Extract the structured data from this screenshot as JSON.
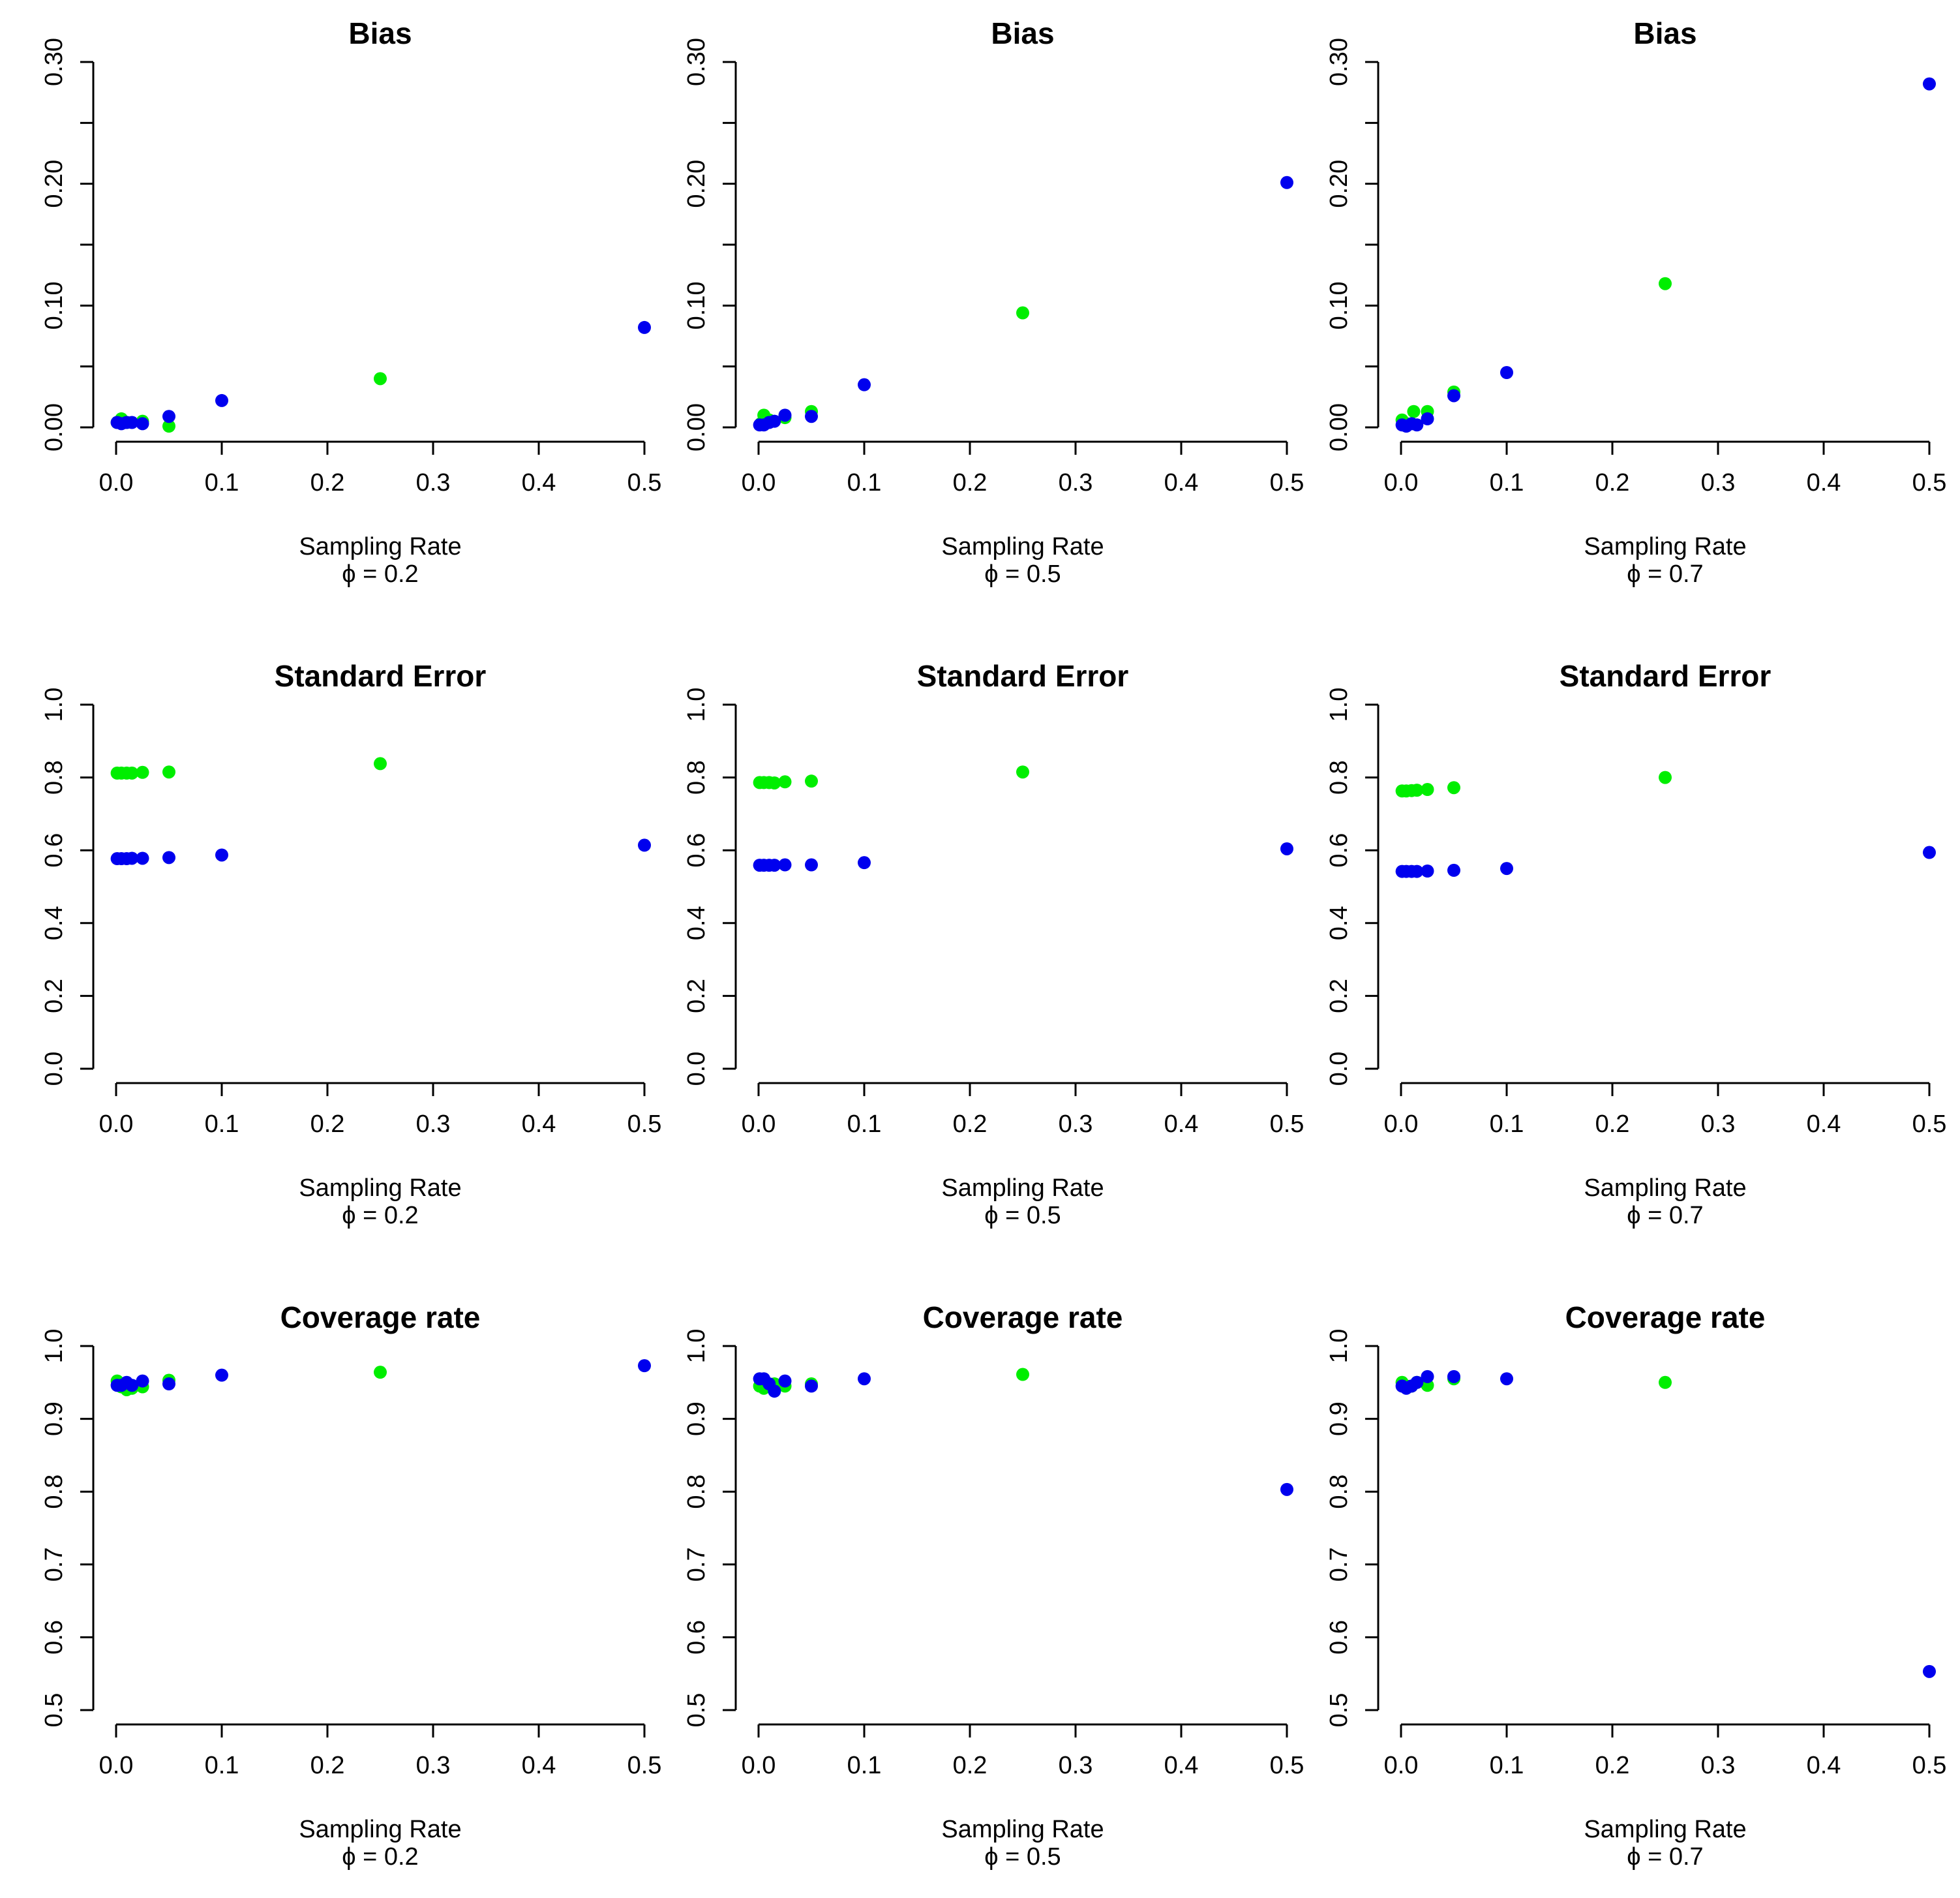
{
  "colors": {
    "green_series": "#00ee00",
    "blue_series": "#0000ee",
    "axis": "#000000"
  },
  "chart_data": [
    {
      "type": "scatter",
      "title": "Bias",
      "xlabel": "Sampling Rate",
      "sublabel": "ϕ = 0.2",
      "xlim": [
        0,
        0.5
      ],
      "ylim": [
        0,
        0.3
      ],
      "xticks": [
        0,
        0.1,
        0.2,
        0.3,
        0.4,
        0.5
      ],
      "xtick_labels": [
        "0.0",
        "0.1",
        "0.2",
        "0.3",
        "0.4",
        "0.5"
      ],
      "yticks": [
        0,
        0.1,
        0.2,
        0.3
      ],
      "ytick_labels": [
        "0.00",
        "0.10",
        "0.20",
        "0.30"
      ],
      "series": [
        {
          "name": "green",
          "color": "#00ee00",
          "x": [
            0.001,
            0.005,
            0.01,
            0.025,
            0.05,
            0.25
          ],
          "y": [
            0.004,
            0.007,
            0.004,
            0.005,
            0.001,
            0.04
          ]
        },
        {
          "name": "blue",
          "color": "#0000ee",
          "x": [
            0.001,
            0.005,
            0.01,
            0.015,
            0.025,
            0.05,
            0.1,
            0.5
          ],
          "y": [
            0.004,
            0.003,
            0.004,
            0.004,
            0.003,
            0.009,
            0.022,
            0.082
          ]
        }
      ]
    },
    {
      "type": "scatter",
      "title": "Bias",
      "xlabel": "Sampling Rate",
      "sublabel": "ϕ = 0.5",
      "xlim": [
        0,
        0.5
      ],
      "ylim": [
        0,
        0.3
      ],
      "xticks": [
        0,
        0.1,
        0.2,
        0.3,
        0.4,
        0.5
      ],
      "xtick_labels": [
        "0.0",
        "0.1",
        "0.2",
        "0.3",
        "0.4",
        "0.5"
      ],
      "yticks": [
        0,
        0.1,
        0.2,
        0.3
      ],
      "ytick_labels": [
        "0.00",
        "0.10",
        "0.20",
        "0.30"
      ],
      "series": [
        {
          "name": "green",
          "color": "#00ee00",
          "x": [
            0.002,
            0.005,
            0.01,
            0.025,
            0.05,
            0.25
          ],
          "y": [
            0.003,
            0.01,
            0.006,
            0.008,
            0.013,
            0.094
          ]
        },
        {
          "name": "blue",
          "color": "#0000ee",
          "x": [
            0.001,
            0.005,
            0.01,
            0.015,
            0.025,
            0.05,
            0.1,
            0.5
          ],
          "y": [
            0.002,
            0.002,
            0.004,
            0.005,
            0.01,
            0.009,
            0.035,
            0.201
          ]
        }
      ]
    },
    {
      "type": "scatter",
      "title": "Bias",
      "xlabel": "Sampling Rate",
      "sublabel": "ϕ = 0.7",
      "xlim": [
        0,
        0.5
      ],
      "ylim": [
        0,
        0.3
      ],
      "xticks": [
        0,
        0.1,
        0.2,
        0.3,
        0.4,
        0.5
      ],
      "xtick_labels": [
        "0.0",
        "0.1",
        "0.2",
        "0.3",
        "0.4",
        "0.5"
      ],
      "yticks": [
        0,
        0.1,
        0.2,
        0.3
      ],
      "ytick_labels": [
        "0.00",
        "0.10",
        "0.20",
        "0.30"
      ],
      "series": [
        {
          "name": "green",
          "color": "#00ee00",
          "x": [
            0.001,
            0.005,
            0.012,
            0.025,
            0.05,
            0.25
          ],
          "y": [
            0.006,
            0.003,
            0.013,
            0.013,
            0.029,
            0.118
          ]
        },
        {
          "name": "blue",
          "color": "#0000ee",
          "x": [
            0.001,
            0.005,
            0.01,
            0.015,
            0.025,
            0.05,
            0.1,
            0.5
          ],
          "y": [
            0.002,
            0.001,
            0.003,
            0.002,
            0.007,
            0.026,
            0.045,
            0.282
          ]
        }
      ]
    },
    {
      "type": "scatter",
      "title": "Standard Error",
      "xlabel": "Sampling Rate",
      "sublabel": "ϕ = 0.2",
      "xlim": [
        0,
        0.5
      ],
      "ylim": [
        0,
        1.0
      ],
      "xticks": [
        0,
        0.1,
        0.2,
        0.3,
        0.4,
        0.5
      ],
      "xtick_labels": [
        "0.0",
        "0.1",
        "0.2",
        "0.3",
        "0.4",
        "0.5"
      ],
      "yticks": [
        0,
        0.2,
        0.4,
        0.6,
        0.8,
        1.0
      ],
      "ytick_labels": [
        "0.0",
        "0.2",
        "0.4",
        "0.6",
        "0.8",
        "1.0"
      ],
      "series": [
        {
          "name": "green",
          "color": "#00ee00",
          "x": [
            0.001,
            0.005,
            0.01,
            0.015,
            0.025,
            0.05,
            0.25
          ],
          "y": [
            0.812,
            0.812,
            0.812,
            0.812,
            0.814,
            0.815,
            0.838
          ]
        },
        {
          "name": "blue",
          "color": "#0000ee",
          "x": [
            0.001,
            0.005,
            0.01,
            0.015,
            0.025,
            0.05,
            0.1,
            0.5
          ],
          "y": [
            0.577,
            0.577,
            0.577,
            0.578,
            0.578,
            0.58,
            0.587,
            0.614
          ]
        }
      ]
    },
    {
      "type": "scatter",
      "title": "Standard Error",
      "xlabel": "Sampling Rate",
      "sublabel": "ϕ = 0.5",
      "xlim": [
        0,
        0.5
      ],
      "ylim": [
        0,
        1.0
      ],
      "xticks": [
        0,
        0.1,
        0.2,
        0.3,
        0.4,
        0.5
      ],
      "xtick_labels": [
        "0.0",
        "0.1",
        "0.2",
        "0.3",
        "0.4",
        "0.5"
      ],
      "yticks": [
        0,
        0.2,
        0.4,
        0.6,
        0.8,
        1.0
      ],
      "ytick_labels": [
        "0.0",
        "0.2",
        "0.4",
        "0.6",
        "0.8",
        "1.0"
      ],
      "series": [
        {
          "name": "green",
          "color": "#00ee00",
          "x": [
            0.001,
            0.005,
            0.01,
            0.015,
            0.025,
            0.05,
            0.25
          ],
          "y": [
            0.786,
            0.786,
            0.786,
            0.785,
            0.788,
            0.79,
            0.815
          ]
        },
        {
          "name": "blue",
          "color": "#0000ee",
          "x": [
            0.001,
            0.005,
            0.01,
            0.015,
            0.025,
            0.05,
            0.1,
            0.5
          ],
          "y": [
            0.559,
            0.559,
            0.559,
            0.559,
            0.56,
            0.56,
            0.566,
            0.604
          ]
        }
      ]
    },
    {
      "type": "scatter",
      "title": "Standard Error",
      "xlabel": "Sampling Rate",
      "sublabel": "ϕ = 0.7",
      "xlim": [
        0,
        0.5
      ],
      "ylim": [
        0,
        1.0
      ],
      "xticks": [
        0,
        0.1,
        0.2,
        0.3,
        0.4,
        0.5
      ],
      "xtick_labels": [
        "0.0",
        "0.1",
        "0.2",
        "0.3",
        "0.4",
        "0.5"
      ],
      "yticks": [
        0,
        0.2,
        0.4,
        0.6,
        0.8,
        1.0
      ],
      "ytick_labels": [
        "0.0",
        "0.2",
        "0.4",
        "0.6",
        "0.8",
        "1.0"
      ],
      "series": [
        {
          "name": "green",
          "color": "#00ee00",
          "x": [
            0.001,
            0.005,
            0.01,
            0.015,
            0.025,
            0.05,
            0.25
          ],
          "y": [
            0.763,
            0.763,
            0.764,
            0.765,
            0.767,
            0.772,
            0.8
          ]
        },
        {
          "name": "blue",
          "color": "#0000ee",
          "x": [
            0.001,
            0.005,
            0.01,
            0.015,
            0.025,
            0.05,
            0.1,
            0.5
          ],
          "y": [
            0.542,
            0.542,
            0.542,
            0.542,
            0.543,
            0.545,
            0.55,
            0.594
          ]
        }
      ]
    },
    {
      "type": "scatter",
      "title": "Coverage rate",
      "xlabel": "Sampling Rate",
      "sublabel": "ϕ = 0.2",
      "xlim": [
        0,
        0.5
      ],
      "ylim": [
        0.5,
        1.0
      ],
      "xticks": [
        0,
        0.1,
        0.2,
        0.3,
        0.4,
        0.5
      ],
      "xtick_labels": [
        "0.0",
        "0.1",
        "0.2",
        "0.3",
        "0.4",
        "0.5"
      ],
      "yticks": [
        0.5,
        0.6,
        0.7,
        0.8,
        0.9,
        1.0
      ],
      "ytick_labels": [
        "0.5",
        "0.6",
        "0.7",
        "0.8",
        "0.9",
        "1.0"
      ],
      "series": [
        {
          "name": "green",
          "color": "#00ee00",
          "x": [
            0.001,
            0.005,
            0.01,
            0.015,
            0.025,
            0.05,
            0.25
          ],
          "y": [
            0.952,
            0.944,
            0.94,
            0.942,
            0.944,
            0.953,
            0.964
          ]
        },
        {
          "name": "blue",
          "color": "#0000ee",
          "x": [
            0.001,
            0.005,
            0.01,
            0.015,
            0.025,
            0.05,
            0.1,
            0.5
          ],
          "y": [
            0.946,
            0.946,
            0.95,
            0.946,
            0.952,
            0.948,
            0.96,
            0.973
          ]
        }
      ]
    },
    {
      "type": "scatter",
      "title": "Coverage rate",
      "xlabel": "Sampling Rate",
      "sublabel": "ϕ = 0.5",
      "xlim": [
        0,
        0.5
      ],
      "ylim": [
        0.5,
        1.0
      ],
      "xticks": [
        0,
        0.1,
        0.2,
        0.3,
        0.4,
        0.5
      ],
      "xtick_labels": [
        "0.0",
        "0.1",
        "0.2",
        "0.3",
        "0.4",
        "0.5"
      ],
      "yticks": [
        0.5,
        0.6,
        0.7,
        0.8,
        0.9,
        1.0
      ],
      "ytick_labels": [
        "0.5",
        "0.6",
        "0.7",
        "0.8",
        "0.9",
        "1.0"
      ],
      "series": [
        {
          "name": "green",
          "color": "#00ee00",
          "x": [
            0.001,
            0.005,
            0.01,
            0.015,
            0.025,
            0.05,
            0.25
          ],
          "y": [
            0.945,
            0.942,
            0.945,
            0.948,
            0.945,
            0.948,
            0.961
          ]
        },
        {
          "name": "blue",
          "color": "#0000ee",
          "x": [
            0.001,
            0.005,
            0.01,
            0.015,
            0.025,
            0.05,
            0.1,
            0.5
          ],
          "y": [
            0.955,
            0.955,
            0.948,
            0.938,
            0.952,
            0.945,
            0.955,
            0.803
          ]
        }
      ]
    },
    {
      "type": "scatter",
      "title": "Coverage rate",
      "xlabel": "Sampling Rate",
      "sublabel": "ϕ = 0.7",
      "xlim": [
        0,
        0.5
      ],
      "ylim": [
        0.5,
        1.0
      ],
      "xticks": [
        0,
        0.1,
        0.2,
        0.3,
        0.4,
        0.5
      ],
      "xtick_labels": [
        "0.0",
        "0.1",
        "0.2",
        "0.3",
        "0.4",
        "0.5"
      ],
      "yticks": [
        0.5,
        0.6,
        0.7,
        0.8,
        0.9,
        1.0
      ],
      "ytick_labels": [
        "0.5",
        "0.6",
        "0.7",
        "0.8",
        "0.9",
        "1.0"
      ],
      "series": [
        {
          "name": "green",
          "color": "#00ee00",
          "x": [
            0.001,
            0.005,
            0.01,
            0.015,
            0.025,
            0.05,
            0.25
          ],
          "y": [
            0.95,
            0.945,
            0.945,
            0.95,
            0.946,
            0.955,
            0.95
          ]
        },
        {
          "name": "blue",
          "color": "#0000ee",
          "x": [
            0.001,
            0.005,
            0.01,
            0.015,
            0.025,
            0.05,
            0.1,
            0.5
          ],
          "y": [
            0.945,
            0.942,
            0.945,
            0.95,
            0.958,
            0.958,
            0.955,
            0.553
          ]
        }
      ]
    }
  ]
}
